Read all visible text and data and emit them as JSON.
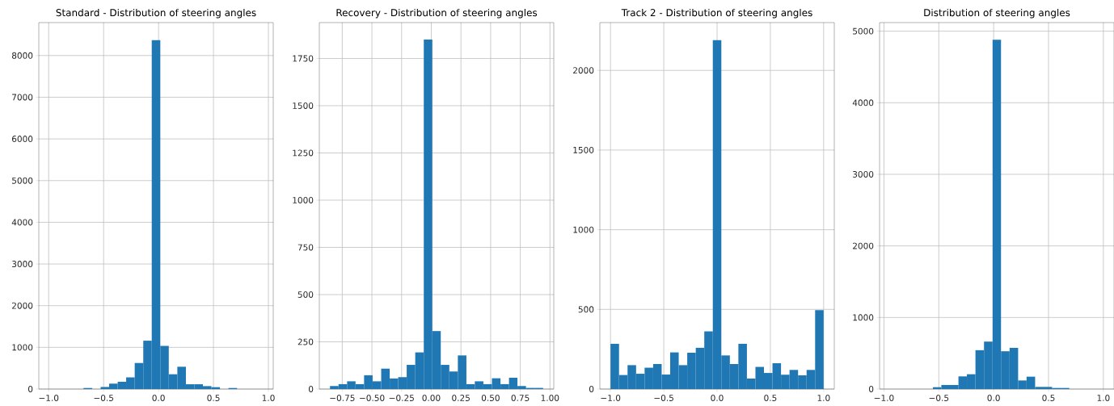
{
  "chart_data": [
    {
      "type": "histogram",
      "title": "Standard - Distribution of steering angles",
      "color": "#1f77b4",
      "grid": true,
      "bins": [
        -0.993,
        -0.915,
        -0.838,
        -0.76,
        -0.683,
        -0.605,
        -0.527,
        -0.45,
        -0.372,
        -0.295,
        -0.217,
        -0.139,
        -0.062,
        0.016,
        0.093,
        0.171,
        0.249,
        0.326,
        0.404,
        0.481,
        0.559,
        0.637,
        0.714,
        0.792,
        0.869,
        0.947
      ],
      "values": [
        0,
        0,
        0,
        0,
        25,
        0,
        50,
        130,
        175,
        280,
        625,
        1160,
        8370,
        1035,
        355,
        535,
        115,
        115,
        70,
        45,
        0,
        25,
        0,
        0,
        0
      ],
      "xlim": [
        -1.09,
        1.044
      ],
      "xticks": [
        {
          "value": -1.0,
          "label": "−1.0"
        },
        {
          "value": -0.5,
          "label": "−0.5"
        },
        {
          "value": 0,
          "label": "0.0"
        },
        {
          "value": 0.5,
          "label": "0.5"
        },
        {
          "value": 1.0,
          "label": "1.0"
        }
      ],
      "ylim": [
        0,
        8790
      ],
      "yticks": [
        0,
        1000,
        2000,
        3000,
        4000,
        5000,
        6000,
        7000,
        8000
      ]
    },
    {
      "type": "histogram",
      "title": "Recovery - Distribution of steering angles",
      "color": "#1f77b4",
      "grid": true,
      "bins": [
        -0.853,
        -0.781,
        -0.709,
        -0.638,
        -0.566,
        -0.494,
        -0.422,
        -0.35,
        -0.279,
        -0.207,
        -0.135,
        -0.063,
        0.009,
        0.08,
        0.152,
        0.224,
        0.296,
        0.367,
        0.439,
        0.511,
        0.583,
        0.655,
        0.726,
        0.798,
        0.87,
        0.942
      ],
      "values": [
        16,
        26,
        41,
        26,
        73,
        41,
        108,
        56,
        63,
        128,
        194,
        1850,
        307,
        128,
        93,
        178,
        26,
        41,
        26,
        57,
        26,
        60,
        16,
        6,
        6
      ],
      "xlim": [
        -0.943,
        1.032
      ],
      "xticks": [
        {
          "value": -0.75,
          "label": "−0.75"
        },
        {
          "value": -0.5,
          "label": "−0.50"
        },
        {
          "value": -0.25,
          "label": "−0.25"
        },
        {
          "value": 0,
          "label": "0.00"
        },
        {
          "value": 0.25,
          "label": "0.25"
        },
        {
          "value": 0.5,
          "label": "0.50"
        },
        {
          "value": 0.75,
          "label": "0.75"
        },
        {
          "value": 1.0,
          "label": "1.00"
        }
      ],
      "ylim": [
        0,
        1940
      ],
      "yticks": [
        0,
        250,
        500,
        750,
        1000,
        1250,
        1500,
        1750
      ]
    },
    {
      "type": "histogram",
      "title": "Track 2 - Distribution of steering angles",
      "color": "#1f77b4",
      "grid": true,
      "bins": [
        -1.0,
        -0.92,
        -0.84,
        -0.76,
        -0.68,
        -0.6,
        -0.52,
        -0.44,
        -0.36,
        -0.28,
        -0.2,
        -0.12,
        -0.04,
        0.04,
        0.12,
        0.2,
        0.28,
        0.36,
        0.44,
        0.52,
        0.6,
        0.68,
        0.76,
        0.84,
        0.92,
        1.0
      ],
      "values": [
        284,
        88,
        150,
        96,
        134,
        157,
        91,
        230,
        150,
        228,
        259,
        362,
        2190,
        211,
        157,
        284,
        66,
        139,
        101,
        162,
        90,
        120,
        86,
        120,
        495
      ],
      "xlim": [
        -1.1,
        1.1
      ],
      "xticks": [
        {
          "value": -1.0,
          "label": "−1.0"
        },
        {
          "value": -0.5,
          "label": "−0.5"
        },
        {
          "value": 0,
          "label": "0.0"
        },
        {
          "value": 0.5,
          "label": "0.5"
        },
        {
          "value": 1.0,
          "label": "1.0"
        }
      ],
      "ylim": [
        0,
        2300
      ],
      "yticks": [
        0,
        500,
        1000,
        1500,
        2000
      ]
    },
    {
      "type": "histogram",
      "title": "Distribution of steering angles",
      "color": "#1f77b4",
      "grid": true,
      "bins": [
        -0.943,
        -0.865,
        -0.788,
        -0.71,
        -0.632,
        -0.554,
        -0.477,
        -0.399,
        -0.321,
        -0.244,
        -0.166,
        -0.088,
        -0.01,
        0.067,
        0.145,
        0.223,
        0.3,
        0.378,
        0.456,
        0.533,
        0.611,
        0.689,
        0.767,
        0.844,
        0.922,
        1.0
      ],
      "values": [
        0,
        0,
        0,
        0,
        0,
        26,
        57,
        57,
        177,
        207,
        543,
        663,
        4880,
        528,
        576,
        120,
        173,
        30,
        30,
        15,
        15,
        0,
        0,
        0,
        0
      ],
      "xlim": [
        -1.04,
        1.097
      ],
      "xticks": [
        {
          "value": -1.0,
          "label": "−1.0"
        },
        {
          "value": -0.5,
          "label": "−0.5"
        },
        {
          "value": 0,
          "label": "0.0"
        },
        {
          "value": 0.5,
          "label": "0.5"
        },
        {
          "value": 1.0,
          "label": "1.0"
        }
      ],
      "ylim": [
        0,
        5120
      ],
      "yticks": [
        0,
        1000,
        2000,
        3000,
        4000,
        5000
      ]
    }
  ]
}
